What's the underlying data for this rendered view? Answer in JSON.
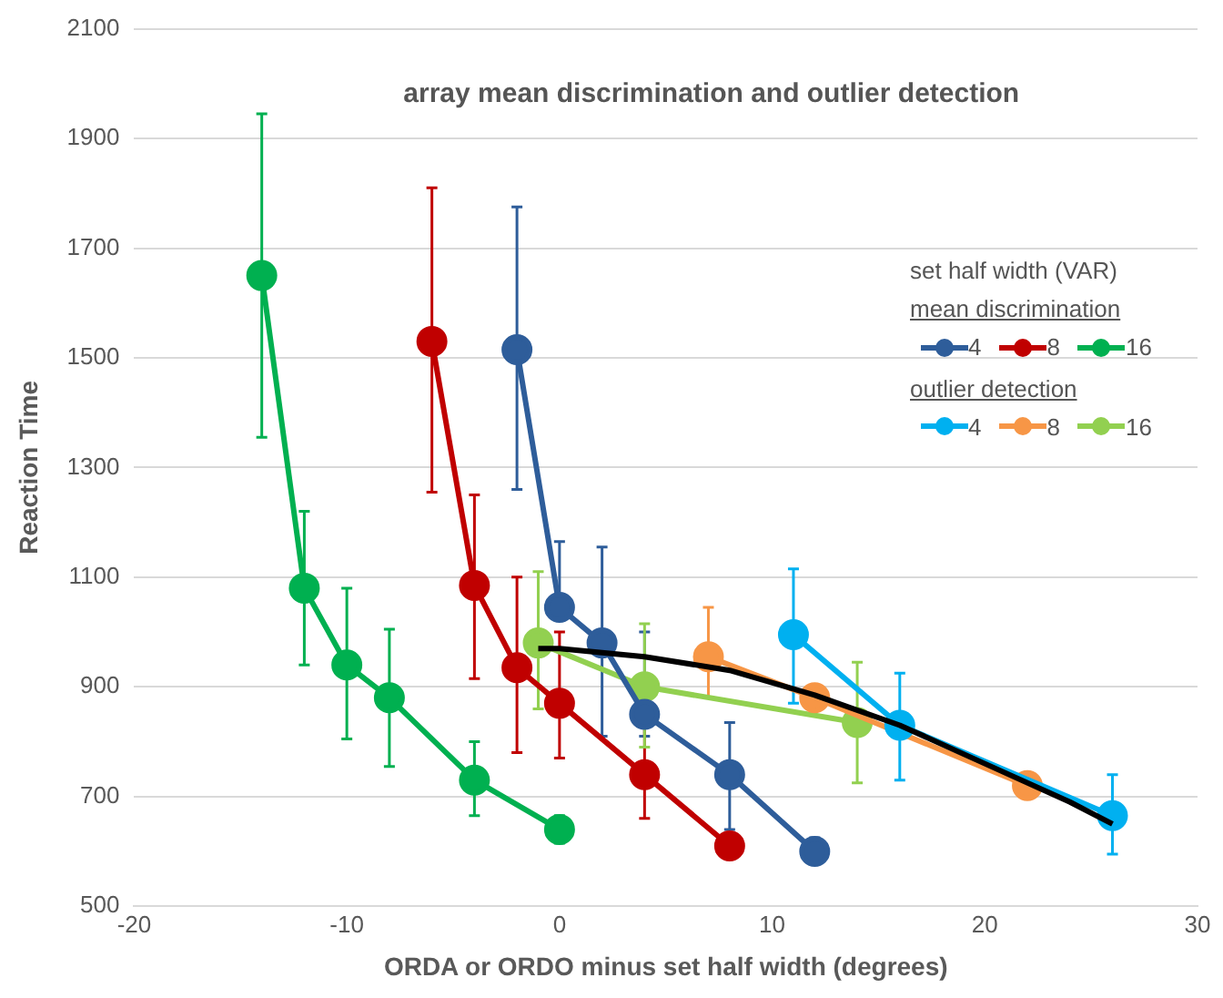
{
  "chart_data": {
    "type": "line",
    "title": "array mean discrimination and outlier detection",
    "xlabel": "ORDA or ORDO minus set half width (degrees)",
    "ylabel": "Reaction Time",
    "legend_title": "set half width (VAR)",
    "annotations": [
      "mean discrimination",
      "outlier detection"
    ],
    "xlim": [
      -20,
      30
    ],
    "xticks": [
      -20,
      -10,
      0,
      10,
      20,
      30
    ],
    "ylim": [
      500,
      2100
    ],
    "yticks": [
      500,
      700,
      900,
      1100,
      1300,
      1500,
      1700,
      1900,
      2100
    ],
    "grid": "y",
    "legend": "right",
    "marker": "circle",
    "line_style": "solid",
    "series": [
      {
        "name": "4",
        "color": "#2e5d9a",
        "x": [
          -2,
          0,
          2,
          4,
          8,
          12
        ],
        "values": [
          1515,
          1045,
          980,
          850,
          740,
          600
        ],
        "errors": [
          [
            1260,
            1775
          ],
          [
            1045,
            1165
          ],
          [
            810,
            1155
          ],
          [
            810,
            1000
          ],
          [
            640,
            835
          ],
          [
            580,
            625
          ]
        ]
      },
      {
        "name": "8",
        "color": "#c00000",
        "x": [
          -6,
          -4,
          -2,
          0,
          4,
          8
        ],
        "values": [
          1530,
          1085,
          935,
          870,
          740,
          610
        ],
        "errors": [
          [
            1255,
            1810
          ],
          [
            915,
            1250
          ],
          [
            780,
            1100
          ],
          [
            770,
            1000
          ],
          [
            660,
            830
          ],
          null
        ]
      },
      {
        "name": "16",
        "color": "#00b050",
        "x": [
          -14,
          -12,
          -10,
          -8,
          -4,
          0
        ],
        "values": [
          1650,
          1080,
          940,
          880,
          730,
          640
        ],
        "errors": [
          [
            1355,
            1945
          ],
          [
            940,
            1220
          ],
          [
            805,
            1080
          ],
          [
            755,
            1005
          ],
          [
            665,
            800
          ],
          [
            615,
            665
          ]
        ]
      },
      {
        "name": "4",
        "color": "#00b0f0",
        "x": [
          11,
          16,
          26
        ],
        "values": [
          995,
          830,
          665
        ],
        "errors": [
          [
            870,
            1115
          ],
          [
            730,
            925
          ],
          [
            595,
            740
          ]
        ]
      },
      {
        "name": "8",
        "color": "#f79646",
        "x": [
          7,
          12,
          22
        ],
        "values": [
          955,
          880,
          720
        ],
        "errors": [
          [
            880,
            1045
          ],
          null,
          null
        ]
      },
      {
        "name": "16",
        "color": "#92d050",
        "x": [
          -1,
          4,
          14
        ],
        "values": [
          980,
          900,
          835
        ],
        "errors": [
          [
            860,
            1110
          ],
          [
            790,
            1015
          ],
          [
            725,
            945
          ]
        ]
      },
      {
        "type": "line",
        "color": "#000000",
        "marker": "none",
        "x": [
          -1,
          0,
          4,
          8,
          12,
          16,
          20,
          24,
          26
        ],
        "values": [
          970,
          970,
          955,
          930,
          885,
          830,
          760,
          690,
          650
        ]
      }
    ]
  }
}
